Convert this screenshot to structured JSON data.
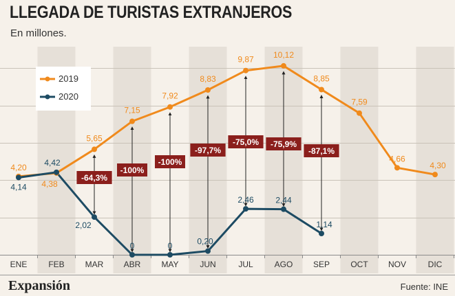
{
  "chart_data": {
    "type": "line",
    "title": "LLEGADA DE TURISTAS EXTRANJEROS",
    "subtitle": "En millones.",
    "categories": [
      "ENE",
      "FEB",
      "MAR",
      "ABR",
      "MAY",
      "JUN",
      "JUL",
      "AGO",
      "SEP",
      "OCT",
      "NOV",
      "DIC"
    ],
    "series": [
      {
        "name": "2019",
        "color": "#f08a1c",
        "values": [
          4.2,
          4.38,
          5.65,
          7.15,
          7.92,
          8.83,
          9.87,
          10.12,
          8.85,
          7.59,
          4.66,
          4.3
        ],
        "labels": [
          "4,20",
          "4,38",
          "5,65",
          "7,15",
          "7,92",
          "8,83",
          "9,87",
          "10,12",
          "8,85",
          "7,59",
          "4,66",
          "4,30"
        ]
      },
      {
        "name": "2020",
        "color": "#1d4b63",
        "values": [
          4.14,
          4.42,
          2.02,
          0,
          0,
          0.2,
          2.46,
          2.44,
          1.14,
          null,
          null,
          null
        ],
        "labels": [
          "4,14",
          "4,42",
          "2,02",
          "0",
          "0",
          "0,20",
          "2,46",
          "2,44",
          "1,14",
          "",
          "",
          ""
        ]
      }
    ],
    "annotations": [
      {
        "month": "MAR",
        "text": "-64,3%"
      },
      {
        "month": "ABR",
        "text": "-100%"
      },
      {
        "month": "MAY",
        "text": "-100%"
      },
      {
        "month": "JUN",
        "text": "-97,7%"
      },
      {
        "month": "JUL",
        "text": "-75,0%"
      },
      {
        "month": "AGO",
        "text": "-75,9%"
      },
      {
        "month": "SEP",
        "text": "-87,1%"
      }
    ],
    "annotation_color": "#8b1f1c",
    "stripe_color": "#e6e0d8",
    "legend_position": "top-left",
    "grid": true,
    "ylim": [
      0,
      11
    ]
  },
  "footer": {
    "brand": "Expansión",
    "source": "Fuente: INE"
  }
}
